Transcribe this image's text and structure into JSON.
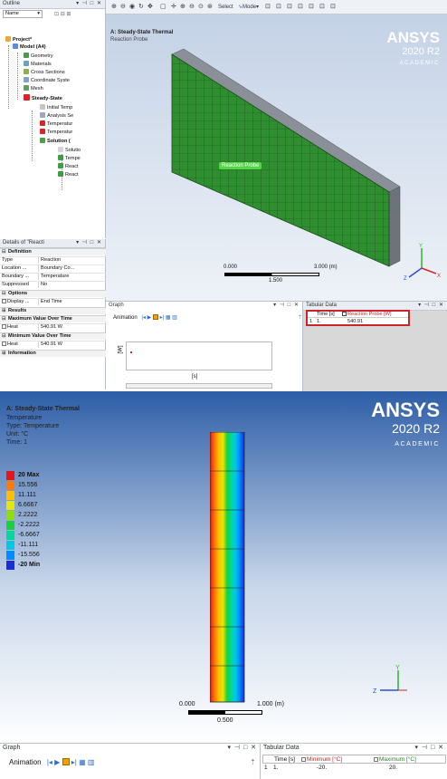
{
  "outline": {
    "title": "Outline",
    "filter_label": "Name",
    "items": [
      {
        "label": "Project*",
        "bold": true
      },
      {
        "label": "Model (A4)",
        "bold": true
      },
      {
        "label": "Geometry"
      },
      {
        "label": "Materials"
      },
      {
        "label": "Cross Sections"
      },
      {
        "label": "Coordinate Syste"
      },
      {
        "label": "Mesh"
      },
      {
        "label": "Steady-State",
        "bold": true
      },
      {
        "label": "Initial Temp"
      },
      {
        "label": "Analysis Se"
      },
      {
        "label": "Temperatur"
      },
      {
        "label": "Temperatur"
      },
      {
        "label": "Solution (",
        "bold": true
      },
      {
        "label": "Solutio"
      },
      {
        "label": "Tempe"
      },
      {
        "label": "React"
      },
      {
        "label": "React"
      }
    ]
  },
  "details": {
    "title": "Details of \"Reacti",
    "sections": {
      "definition": "Definition",
      "options": "Options",
      "results": "Results",
      "max_over_time": "Maximum Value Over Time",
      "min_over_time": "Minimum Value Over Time",
      "information": "Information"
    },
    "rows": {
      "type": {
        "k": "Type",
        "v": "Reaction"
      },
      "location": {
        "k": "Location ...",
        "v": "Boundary Co..."
      },
      "boundary": {
        "k": "Boundary ...",
        "v": "Temperature"
      },
      "suppressed": {
        "k": "Suppressed",
        "v": "No"
      },
      "display": {
        "k": "Display ...",
        "v": "End Time"
      },
      "heat_max": {
        "k": "Heat",
        "v": "540.91 W"
      },
      "heat_min": {
        "k": "Heat",
        "v": "540.91 W"
      }
    }
  },
  "toolbar": {
    "select_label": "Select",
    "mode_label": "Mode"
  },
  "view1": {
    "title": "A: Steady-State Thermal",
    "subtitle": "Reaction Probe",
    "probe_label": "Reaction Probe",
    "scale_left": "0.000",
    "scale_right": "3.000 (m)",
    "scale_mid": "1.500"
  },
  "brand": {
    "name": "ANSYS",
    "version": "2020 R2",
    "edition": "ACADEMIC"
  },
  "graph1": {
    "title": "Graph",
    "animation_label": "Animation",
    "y_axis": "[W]",
    "x_axis": "[s]"
  },
  "tab1": {
    "title": "Tabular Data",
    "headers": [
      "Time [s]",
      "Reaction Probe [W]"
    ],
    "row": [
      "1",
      "1.",
      "540.91"
    ]
  },
  "view2": {
    "title": "A: Steady-State Thermal",
    "lines": [
      "Temperature",
      "Type: Temperature",
      "Unit: °C",
      "Time: 1"
    ],
    "legend": [
      {
        "label": "20 Max",
        "color": "#e8141a",
        "bold": true
      },
      {
        "label": "15.556",
        "color": "#ff7a00"
      },
      {
        "label": "11.111",
        "color": "#ffbf00"
      },
      {
        "label": "6.6667",
        "color": "#e6e600"
      },
      {
        "label": "2.2222",
        "color": "#8fe000"
      },
      {
        "label": "-2.2222",
        "color": "#19d23a"
      },
      {
        "label": "-6.6667",
        "color": "#00d8a0"
      },
      {
        "label": "-11.111",
        "color": "#00c8e6"
      },
      {
        "label": "-15.556",
        "color": "#008cff"
      },
      {
        "label": "-20 Min",
        "color": "#1e2cd8",
        "bold": true
      }
    ],
    "scale_left": "0.000",
    "scale_right": "1.000 (m)",
    "scale_mid": "0.500"
  },
  "graph2": {
    "title": "Graph",
    "animation_label": "Animation"
  },
  "tab2": {
    "title": "Tabular Data",
    "headers": [
      "Time [s]",
      "Minimum [°C]",
      "Maximum [°C]"
    ],
    "row": [
      "1",
      "1.",
      "-20.",
      "20."
    ]
  }
}
